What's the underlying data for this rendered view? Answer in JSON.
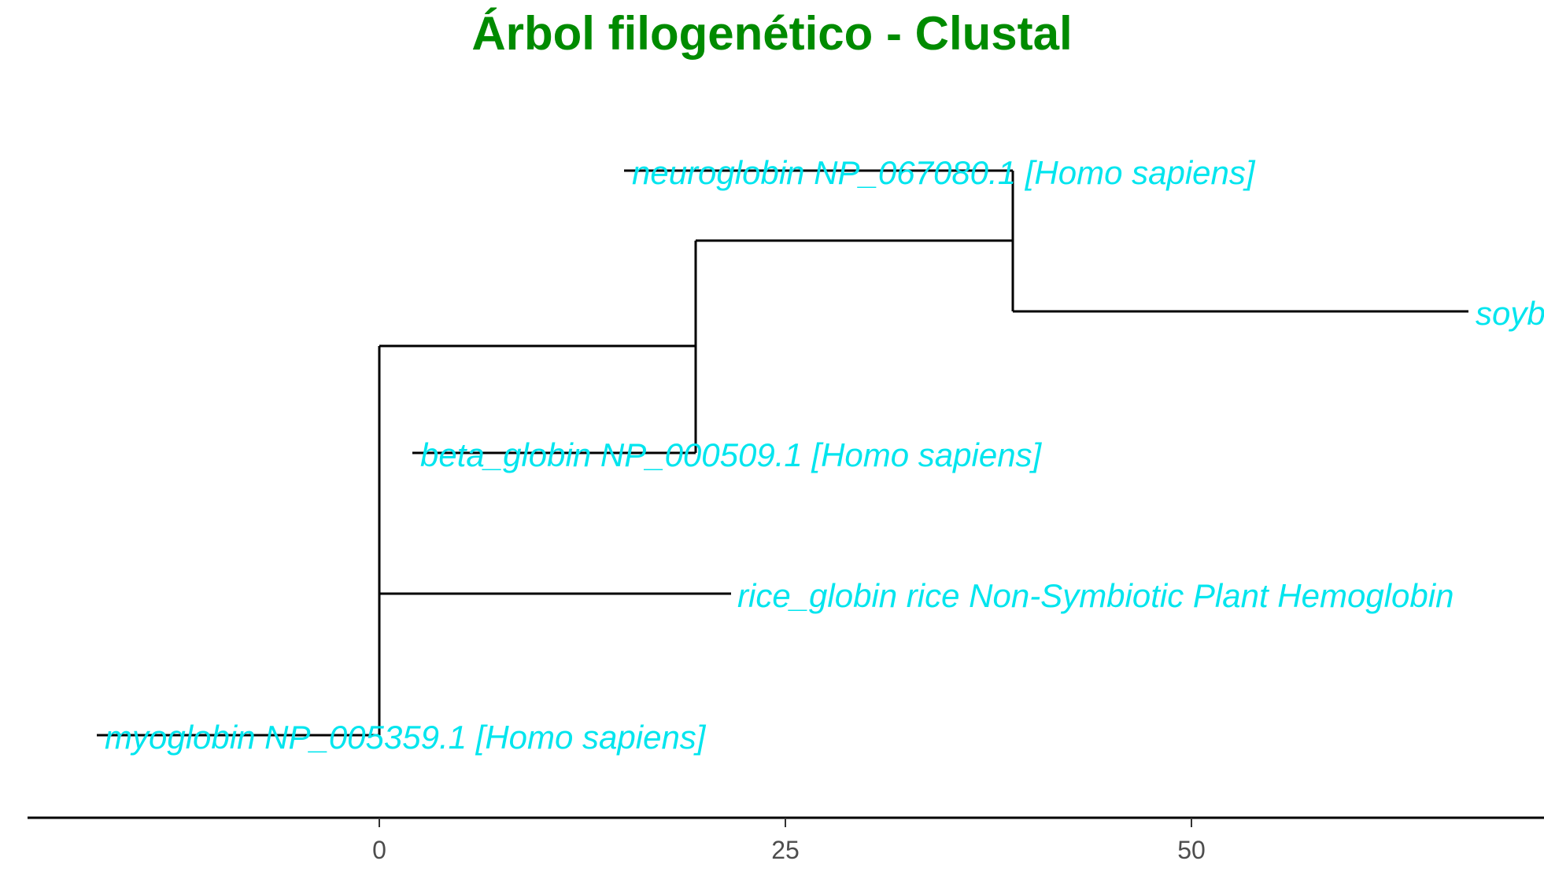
{
  "title": "Árbol filogenético - Clustal",
  "colors": {
    "title": "#008b00",
    "tip_label": "#00e5ee",
    "branch": "#000000"
  },
  "chart_data": {
    "type": "phylogenetic-tree",
    "title": "Árbol filogenético - Clustal",
    "x_axis": {
      "ticks": [
        0,
        25,
        50
      ]
    },
    "tips": [
      {
        "id": "neuroglobin",
        "label": "neuroglobin NP_067080.1 [Homo sapiens]",
        "parent": "n3",
        "branch_length": 0.0
      },
      {
        "id": "soybean",
        "label": "soybean",
        "parent": "n3",
        "branch_length": 28.0
      },
      {
        "id": "beta",
        "label": "beta_globin NP_000509.1 [Homo sapiens]",
        "parent": "n2",
        "branch_length": 0.0
      },
      {
        "id": "rice",
        "label": "rice_globin rice Non-Symbiotic Plant Hemoglobin",
        "parent": "n1",
        "branch_length": 21.7
      },
      {
        "id": "myo",
        "label": "myoglobin NP_005359.1 [Homo sapiens]",
        "parent": "n1",
        "branch_length": 0.0
      }
    ],
    "internal_nodes": [
      {
        "id": "n1",
        "x": 0.0
      },
      {
        "id": "n2",
        "x": 19.5
      },
      {
        "id": "n3",
        "x": 39.0
      }
    ]
  }
}
